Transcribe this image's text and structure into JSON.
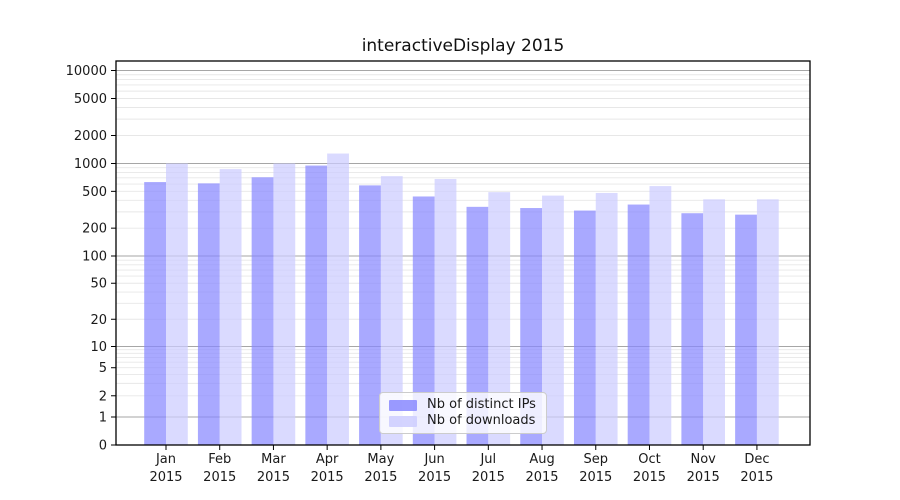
{
  "chart_data": {
    "type": "bar",
    "title": "interactiveDisplay 2015",
    "categories": [
      "Jan 2015",
      "Feb 2015",
      "Mar 2015",
      "Apr 2015",
      "May 2015",
      "Jun 2015",
      "Jul 2015",
      "Aug 2015",
      "Sep 2015",
      "Oct 2015",
      "Nov 2015",
      "Dec 2015"
    ],
    "x_tick_months": [
      "Jan",
      "Feb",
      "Mar",
      "Apr",
      "May",
      "Jun",
      "Jul",
      "Aug",
      "Sep",
      "Oct",
      "Nov",
      "Dec"
    ],
    "x_tick_year": "2015",
    "series": [
      {
        "name": "Nb of distinct IPs",
        "color": "#8888ff",
        "values": [
          630,
          610,
          710,
          950,
          580,
          440,
          340,
          330,
          310,
          360,
          290,
          280
        ]
      },
      {
        "name": "Nb of downloads",
        "color": "#ccccff",
        "values": [
          1000,
          870,
          1000,
          1280,
          730,
          680,
          490,
          450,
          480,
          570,
          410,
          410
        ]
      }
    ],
    "xlabel": "",
    "ylabel": "",
    "yscale": "symlog",
    "ylim": [
      0,
      12600
    ],
    "grid": true,
    "legend_position": "lower center",
    "yticks": [
      {
        "value": 10000,
        "label": "10000",
        "major": true
      },
      {
        "value": 5000,
        "label": "5000",
        "major": false
      },
      {
        "value": 2000,
        "label": "2000",
        "major": false
      },
      {
        "value": 1000,
        "label": "1000",
        "major": true
      },
      {
        "value": 500,
        "label": "500",
        "major": false
      },
      {
        "value": 200,
        "label": "200",
        "major": false
      },
      {
        "value": 100,
        "label": "100",
        "major": true
      },
      {
        "value": 50,
        "label": "50",
        "major": false
      },
      {
        "value": 20,
        "label": "20",
        "major": false
      },
      {
        "value": 10,
        "label": "10",
        "major": true
      },
      {
        "value": 5,
        "label": "5",
        "major": false
      },
      {
        "value": 2,
        "label": "2",
        "major": false
      },
      {
        "value": 1,
        "label": "1",
        "major": true
      },
      {
        "value": 0,
        "label": "0",
        "major": true
      }
    ],
    "colors": {
      "major_grid": "#a6a6a6",
      "minor_grid": "#e7e7e7",
      "axis": "#000000",
      "background": "#ffffff"
    }
  }
}
